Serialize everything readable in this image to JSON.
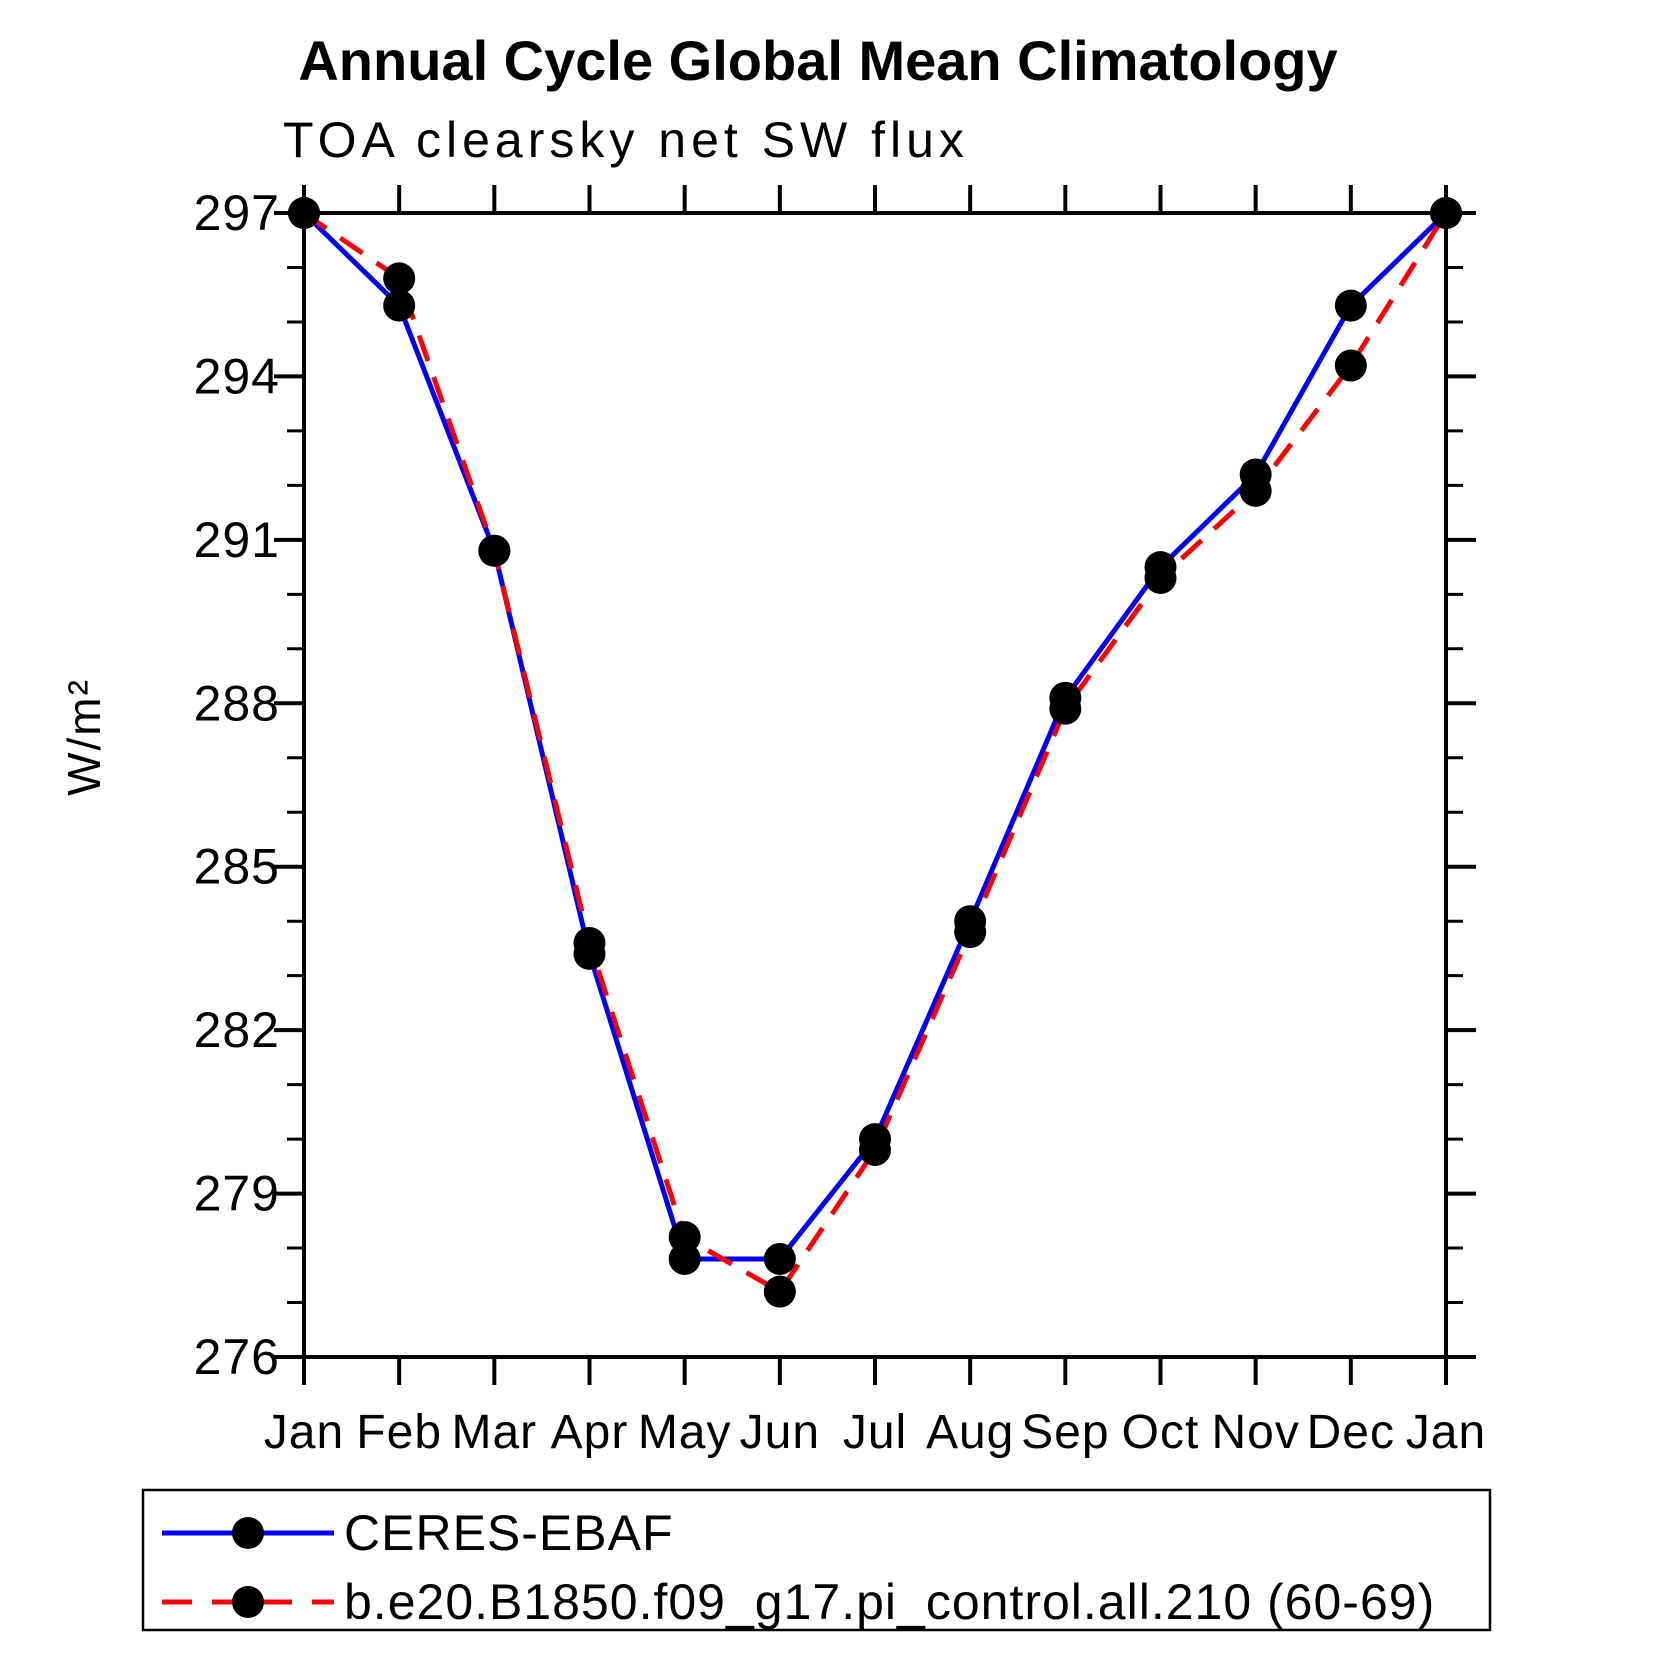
{
  "chart_data": {
    "type": "line",
    "title": "Annual Cycle Global Mean Climatology",
    "subtitle": "TOA clearsky net SW flux",
    "ylabel": "W/m²",
    "categories": [
      "Jan",
      "Feb",
      "Mar",
      "Apr",
      "May",
      "Jun",
      "Jul",
      "Aug",
      "Sep",
      "Oct",
      "Nov",
      "Dec",
      "Jan"
    ],
    "ylim": [
      276,
      297
    ],
    "y_major_ticks": [
      276,
      279,
      282,
      285,
      288,
      291,
      294,
      297
    ],
    "y_minor_step": 1,
    "grid": false,
    "legend_position": "bottom",
    "marker_color": "#000000",
    "series": [
      {
        "name": "CERES-EBAF",
        "color": "#0000ff",
        "style": "solid",
        "values": [
          297.0,
          295.3,
          290.8,
          283.4,
          277.8,
          277.8,
          280.0,
          284.0,
          288.1,
          290.5,
          292.2,
          295.3,
          297.0
        ]
      },
      {
        "name": "b.e20.B1850.f09_g17.pi_control.all.210 (60-69)",
        "color": "#ff0000",
        "style": "dashed",
        "values": [
          297.0,
          295.8,
          290.8,
          283.6,
          278.2,
          277.2,
          279.8,
          283.8,
          287.9,
          290.3,
          291.9,
          294.2,
          297.0
        ]
      }
    ]
  }
}
